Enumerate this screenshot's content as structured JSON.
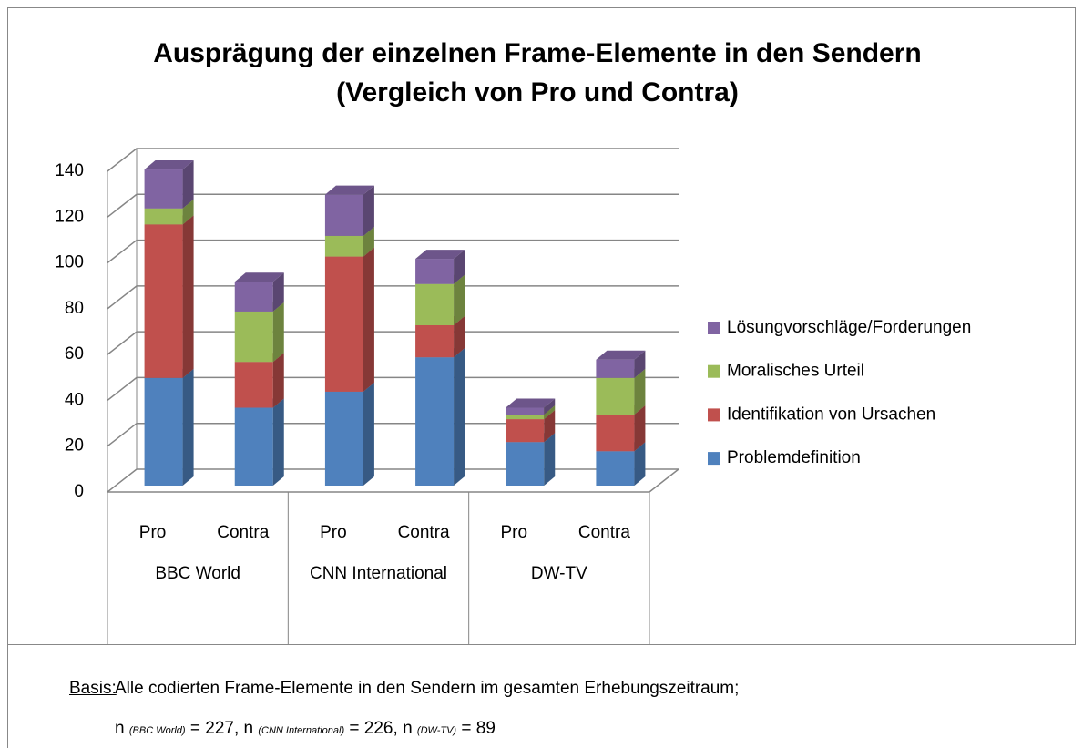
{
  "chart_data": {
    "type": "bar3d_stacked",
    "title": "Ausprägung der einzelnen Frame-Elemente in den Sendern",
    "subtitle": "(Vergleich von Pro und Contra)",
    "categories": [
      "Pro",
      "Contra",
      "Pro",
      "Contra",
      "Pro",
      "Contra"
    ],
    "groups": [
      "BBC World",
      "CNN International",
      "DW-TV"
    ],
    "series": [
      {
        "name": "Problemdefinition",
        "color": "#4f81bd",
        "values": [
          47,
          34,
          41,
          56,
          19,
          15
        ]
      },
      {
        "name": "Identifikation von Ursachen",
        "color": "#c0504d",
        "values": [
          67,
          20,
          59,
          14,
          10,
          16
        ]
      },
      {
        "name": "Moralisches Urteil",
        "color": "#9bbb59",
        "values": [
          7,
          22,
          9,
          18,
          2,
          16
        ]
      },
      {
        "name": "Lösungvorschläge/Forderungen",
        "color": "#8064a2",
        "values": [
          17,
          13,
          18,
          11,
          3,
          8
        ]
      }
    ],
    "ylim": [
      0,
      140
    ],
    "yticks": [
      0,
      20,
      40,
      60,
      80,
      100,
      120,
      140
    ],
    "grid": true,
    "legend": "right"
  },
  "footer": {
    "label": "Basis:",
    "text": "Alle codierten Frame-Elemente in den Sendern im gesamten Erhebungszeitraum;",
    "n": [
      {
        "symbol": "n",
        "sub": "(BBC World)",
        "value": "= 227,"
      },
      {
        "symbol": "n",
        "sub": "(CNN International)",
        "value": "= 226,"
      },
      {
        "symbol": "n",
        "sub": "(DW-TV)",
        "value": "= 89"
      }
    ]
  }
}
